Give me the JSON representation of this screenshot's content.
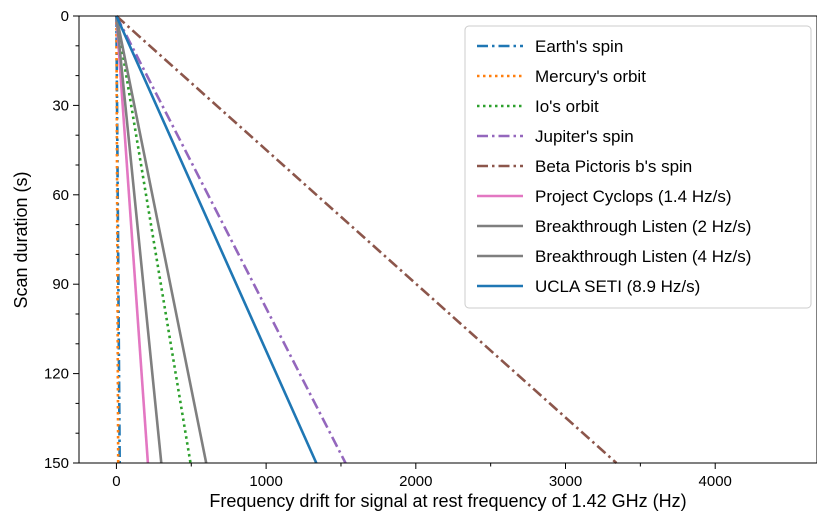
{
  "chart_data": {
    "type": "line",
    "title": "",
    "xlabel": "Frequency drift for signal at rest frequency of 1.42 GHz (Hz)",
    "ylabel": "Scan duration (s)",
    "xlim": [
      -250,
      4680
    ],
    "ylim": [
      150,
      0
    ],
    "y_inverted": true,
    "grid": false,
    "legend_position": "top-right",
    "x_ticks": [
      "0",
      "1000",
      "2000",
      "3000",
      "4000"
    ],
    "y_ticks": [
      "0",
      "30",
      "60",
      "90",
      "120",
      "150"
    ],
    "series": [
      {
        "name": "Earth's spin",
        "color": "#1f77b4",
        "dash": "dashdot",
        "x": [
          0,
          22
        ],
        "y": [
          0,
          150
        ]
      },
      {
        "name": "Mercury's orbit",
        "color": "#ff7f0e",
        "dash": "dotted",
        "x": [
          0,
          12
        ],
        "y": [
          0,
          150
        ]
      },
      {
        "name": "Io's orbit",
        "color": "#2ca02c",
        "dash": "dotted",
        "x": [
          0,
          495
        ],
        "y": [
          0,
          150
        ]
      },
      {
        "name": "Jupiter's spin",
        "color": "#9467bd",
        "dash": "dashdot",
        "x": [
          0,
          1530
        ],
        "y": [
          0,
          150
        ]
      },
      {
        "name": "Beta Pictoris b's spin",
        "color": "#8c564b",
        "dash": "dashdot",
        "x": [
          0,
          3340
        ],
        "y": [
          0,
          150
        ]
      },
      {
        "name": "Project Cyclops (1.4 Hz/s)",
        "color": "#e377c2",
        "dash": "solid",
        "x": [
          0,
          210
        ],
        "y": [
          0,
          150
        ]
      },
      {
        "name": "Breakthrough Listen (2 Hz/s)",
        "color": "#7f7f7f",
        "dash": "solid",
        "x": [
          0,
          300
        ],
        "y": [
          0,
          150
        ]
      },
      {
        "name": "Breakthrough Listen (4 Hz/s)",
        "color": "#7f7f7f",
        "dash": "solid",
        "x": [
          0,
          600
        ],
        "y": [
          0,
          150
        ]
      },
      {
        "name": "UCLA SETI (8.9 Hz/s)",
        "color": "#1f77b4",
        "dash": "solid",
        "x": [
          0,
          1335
        ],
        "y": [
          0,
          150
        ]
      }
    ]
  }
}
